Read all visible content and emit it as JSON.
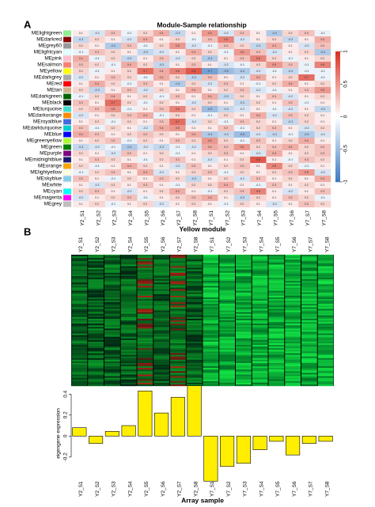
{
  "panels": [
    "A",
    "B"
  ],
  "chart_data": [
    {
      "type": "heatmap",
      "title": "Module-Sample relationship",
      "rows": [
        "MElightgreen",
        "MEdarkred",
        "MEgrey60",
        "MElightcyan",
        "MEpink",
        "MEsalmon",
        "MEyellow",
        "MEdarkgrey",
        "MEred",
        "MEtan",
        "MEdarkgreen",
        "MEblack",
        "MEturquoise",
        "MEdarkorange",
        "MEroyalblue",
        "MEdarkturquoise",
        "MEblue",
        "MEgreenyellow",
        "MEgreen",
        "MEpurple",
        "MEmidnightblue",
        "MEorange",
        "MElightyellow",
        "MEskyblue",
        "MEwhite",
        "MEcyan",
        "MEmagenta",
        "MEgrey"
      ],
      "row_colors": [
        "#90ee90",
        "#8b0000",
        "#999999",
        "#e0ffff",
        "#ffc0cb",
        "#fa8072",
        "#ffff00",
        "#a9a9a9",
        "#ff0000",
        "#d2b48c",
        "#006400",
        "#000000",
        "#40e0d0",
        "#ff8c00",
        "#4169e1",
        "#00ced1",
        "#0000ff",
        "#adff2f",
        "#008000",
        "#800080",
        "#191970",
        "#ffa500",
        "#ffffe0",
        "#87ceeb",
        "#ffffff",
        "#00ffff",
        "#ff00ff",
        "#bebebe"
      ],
      "categories": [
        "Y2_S1",
        "Y2_S2",
        "Y2_S3",
        "Y2_S4",
        "Y2_S5",
        "Y2_S6",
        "Y2_S7",
        "Y2_S8",
        "Y7_S1",
        "Y7_S2",
        "Y7_S3",
        "Y7_S4",
        "Y7_S5",
        "Y7_S6",
        "Y7_S7",
        "Y7_S8"
      ],
      "values": [
        [
          0.1,
          -0.2,
          0.3,
          -0.1,
          0.2,
          0.4,
          -0.3,
          0.1,
          0.5,
          -0.2,
          0.3,
          0.1,
          -0.4,
          0.2,
          0.3,
          -0.1
        ],
        [
          -0.3,
          0.2,
          0.1,
          -0.2,
          0.4,
          0.1,
          0.2,
          -0.1,
          0.3,
          0.6,
          -0.2,
          0.1,
          0.2,
          -0.3,
          0.1,
          0.4
        ],
        [
          0.2,
          0.1,
          -0.4,
          0.3,
          -0.1,
          0.2,
          0.5,
          -0.2,
          -0.1,
          0.3,
          0.2,
          -0.3,
          0.4,
          0.1,
          -0.2,
          0.3
        ],
        [
          -0.1,
          0.3,
          0.2,
          0.1,
          -0.3,
          -0.2,
          0.1,
          0.4,
          0.2,
          -0.1,
          0.5,
          0.3,
          -0.2,
          0.1,
          0.2,
          -0.4
        ],
        [
          0.4,
          -0.1,
          0.2,
          -0.3,
          0.1,
          0.3,
          -0.2,
          0.2,
          -0.4,
          0.1,
          0.3,
          0.6,
          0.2,
          -0.1,
          0.1,
          0.2
        ],
        [
          0.3,
          0.2,
          -0.1,
          0.4,
          0.2,
          -0.3,
          0.1,
          0.3,
          0.1,
          -0.2,
          -0.1,
          0.2,
          0.5,
          0.3,
          -0.1,
          0.6
        ],
        [
          0.2,
          -0.1,
          0.1,
          0.2,
          0.7,
          0.4,
          0.6,
          0.8,
          -0.7,
          -0.5,
          -0.4,
          -0.2,
          -0.1,
          -0.3,
          -0.1,
          -0.1
        ],
        [
          -0.2,
          0.1,
          0.3,
          0.2,
          -0.1,
          0.4,
          0.2,
          -0.3,
          0.3,
          0.1,
          -0.2,
          0.4,
          0.1,
          0.2,
          0.7,
          -0.1
        ],
        [
          0.1,
          0.4,
          0.2,
          -0.1,
          0.3,
          0.1,
          -0.4,
          0.2,
          -0.2,
          0.3,
          0.1,
          -0.1,
          0.2,
          0.4,
          0.1,
          0.2
        ],
        [
          0.2,
          -0.3,
          0.1,
          0.3,
          -0.2,
          0.2,
          0.1,
          0.4,
          0.1,
          0.2,
          0.3,
          -0.2,
          -0.1,
          0.1,
          0.3,
          0.5
        ],
        [
          -0.1,
          0.2,
          0.4,
          0.1,
          0.2,
          -0.1,
          0.3,
          0.1,
          0.4,
          -0.3,
          0.2,
          0.1,
          0.3,
          -0.2,
          0.1,
          0.2
        ],
        [
          0.3,
          0.1,
          0.7,
          0.2,
          -0.1,
          0.2,
          0.1,
          -0.2,
          0.2,
          0.1,
          -0.3,
          0.2,
          0.1,
          0.3,
          -0.1,
          0.1
        ],
        [
          0.2,
          0.3,
          0.5,
          -0.1,
          0.1,
          0.3,
          0.6,
          0.2,
          -0.5,
          -0.3,
          -0.2,
          0.1,
          -0.1,
          -0.2,
          0.1,
          -0.3
        ],
        [
          -0.2,
          0.1,
          0.2,
          0.3,
          0.4,
          -0.1,
          0.2,
          0.1,
          -0.1,
          0.2,
          0.1,
          0.4,
          -0.2,
          0.3,
          0.2,
          0.1
        ],
        [
          0.1,
          0.2,
          -0.1,
          0.2,
          0.1,
          0.3,
          0.7,
          -0.2,
          0.2,
          -0.1,
          0.3,
          0.2,
          0.1,
          -0.3,
          0.2,
          0.1
        ],
        [
          0.3,
          -0.1,
          0.2,
          0.1,
          -0.2,
          0.4,
          0.5,
          0.1,
          0.1,
          0.3,
          -0.1,
          0.2,
          0.3,
          0.1,
          -0.2,
          0.2
        ],
        [
          0.4,
          0.3,
          0.1,
          0.2,
          0.3,
          0.2,
          0.1,
          0.4,
          -0.4,
          -0.3,
          -0.5,
          -0.2,
          -0.3,
          -0.1,
          -0.4,
          -0.2
        ],
        [
          0.1,
          0.2,
          0.3,
          -0.1,
          0.2,
          0.1,
          0.3,
          0.2,
          0.5,
          0.2,
          -0.1,
          0.3,
          0.1,
          0.2,
          0.4,
          0.1
        ],
        [
          -0.3,
          -0.2,
          -0.1,
          -0.4,
          -0.2,
          -0.3,
          -0.1,
          -0.2,
          0.4,
          0.3,
          0.5,
          0.2,
          0.3,
          0.4,
          0.2,
          0.3
        ],
        [
          0.2,
          0.1,
          -0.2,
          0.3,
          0.1,
          0.2,
          -0.1,
          0.1,
          0.2,
          0.3,
          0.1,
          -0.2,
          0.4,
          0.1,
          0.2,
          0.3
        ],
        [
          0.1,
          0.3,
          0.2,
          0.1,
          -0.1,
          0.2,
          0.3,
          0.1,
          -0.2,
          0.1,
          0.2,
          0.8,
          0.1,
          -0.1,
          0.3,
          0.2
        ],
        [
          0.2,
          -0.1,
          0.1,
          0.4,
          0.2,
          0.1,
          -0.2,
          0.3,
          0.1,
          0.2,
          0.3,
          0.1,
          0.6,
          0.2,
          -0.1,
          0.1
        ],
        [
          -0.1,
          0.2,
          0.3,
          0.1,
          0.4,
          -0.2,
          0.1,
          0.2,
          0.3,
          -0.1,
          0.2,
          0.1,
          0.2,
          0.3,
          0.5,
          -0.2
        ],
        [
          0.3,
          0.1,
          -0.1,
          0.2,
          0.1,
          0.3,
          0.2,
          -0.3,
          0.1,
          0.2,
          -0.2,
          0.3,
          0.1,
          0.2,
          0.1,
          0.4
        ],
        [
          0.1,
          -0.2,
          0.2,
          0.1,
          0.3,
          0.1,
          -0.1,
          0.2,
          0.2,
          0.4,
          0.1,
          -0.1,
          0.3,
          0.1,
          0.2,
          0.1
        ],
        [
          0.2,
          0.3,
          0.1,
          -0.2,
          0.1,
          0.2,
          0.4,
          0.1,
          -0.1,
          0.2,
          0.3,
          0.6,
          0.1,
          -0.2,
          0.1,
          0.3
        ],
        [
          -0.2,
          0.1,
          0.2,
          0.3,
          -0.1,
          0.1,
          0.2,
          0.3,
          0.4,
          0.1,
          -0.3,
          0.2,
          0.1,
          0.3,
          0.2,
          -0.1
        ],
        [
          0.1,
          0.2,
          -0.1,
          0.1,
          0.2,
          -0.2,
          0.1,
          0.2,
          0.1,
          -0.1,
          0.2,
          0.1,
          -0.2,
          0.1,
          0.3,
          0.2
        ]
      ],
      "colors": [
        "#3a78c2",
        "#ffffff",
        "#d7301f"
      ],
      "clim": [
        -1,
        1
      ],
      "cticks": [
        1,
        0.5,
        0,
        -0.5,
        -1
      ]
    },
    {
      "type": "bar",
      "title": "Yellow module",
      "xlabel": "Array sample",
      "ylabel": "eigengene expression",
      "categories": [
        "Y2_S1",
        "Y2_S2",
        "Y2_S3",
        "Y2_S4",
        "Y2_S5",
        "Y2_S6",
        "Y2_S7",
        "Y2_S8",
        "Y7_S1",
        "Y7_S2",
        "Y7_S3",
        "Y7_S4",
        "Y7_S5",
        "Y7_S6",
        "Y7_S7",
        "Y7_S8"
      ],
      "values": [
        0.08,
        -0.07,
        0.045,
        0.1,
        0.43,
        0.22,
        0.37,
        0.48,
        -0.43,
        -0.29,
        -0.26,
        -0.13,
        -0.05,
        -0.18,
        -0.07,
        -0.05
      ],
      "color": "#ffee00",
      "ylim": [
        -0.45,
        0.5
      ],
      "yticks": [
        -0.2,
        0,
        0.2,
        0.4
      ]
    }
  ]
}
